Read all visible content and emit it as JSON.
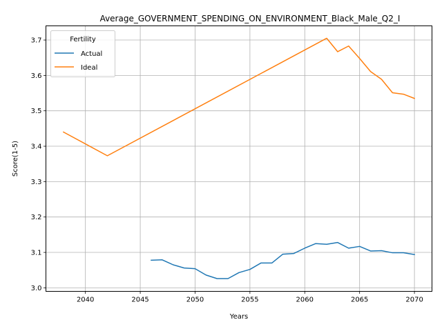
{
  "chart_data": {
    "type": "line",
    "title": "Average_GOVERNMENT_SPENDING_ON_ENVIRONMENT_Black_Male_Q2_I",
    "xlabel": "Years",
    "ylabel": "Score(1-5)",
    "xlim": [
      2036.4,
      2071.6
    ],
    "ylim": [
      2.99,
      3.74
    ],
    "xticks": [
      2040,
      2045,
      2050,
      2055,
      2060,
      2065,
      2070
    ],
    "yticks": [
      3.0,
      3.1,
      3.2,
      3.3,
      3.4,
      3.5,
      3.6,
      3.7
    ],
    "grid": true,
    "legend": {
      "title": "Fertility",
      "placement": "upper-left"
    },
    "series": [
      {
        "name": "Actual",
        "color": "#1f77b4",
        "x": [
          2046,
          2047,
          2048,
          2049,
          2050,
          2051,
          2052,
          2053,
          2054,
          2055,
          2056,
          2057,
          2058,
          2059,
          2060,
          2061,
          2062,
          2063,
          2064,
          2065,
          2066,
          2067,
          2068,
          2069,
          2070
        ],
        "y": [
          3.078,
          3.079,
          3.065,
          3.056,
          3.054,
          3.036,
          3.026,
          3.026,
          3.043,
          3.052,
          3.07,
          3.07,
          3.095,
          3.097,
          3.112,
          3.125,
          3.123,
          3.128,
          3.112,
          3.117,
          3.104,
          3.105,
          3.099,
          3.099,
          3.094
        ]
      },
      {
        "name": "Ideal",
        "color": "#ff7f0e",
        "x": [
          2038,
          2042,
          2062,
          2063,
          2064,
          2065,
          2066,
          2067,
          2068,
          2069,
          2070
        ],
        "y": [
          3.44,
          3.373,
          3.705,
          3.667,
          3.683,
          3.648,
          3.611,
          3.589,
          3.551,
          3.547,
          3.535
        ]
      }
    ]
  }
}
